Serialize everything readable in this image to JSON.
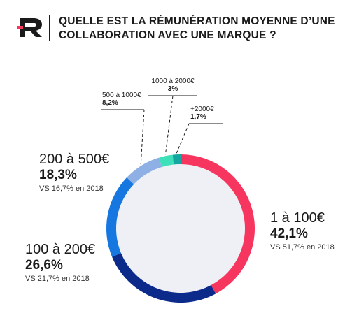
{
  "header": {
    "title_line1": "QUELLE EST LA RÉMUNÉRATION MOYENNE D’UNE",
    "title_line2": "COLLABORATION AVEC UNE MARQUE ?"
  },
  "chart_data": {
    "type": "pie",
    "style": "donut",
    "start": "top",
    "direction": "clockwise",
    "slices": [
      {
        "label": "1 à 100€",
        "value": 42.1,
        "value_text": "42,1%",
        "vs": "VS 51,7% en 2018",
        "color": "#f7365f"
      },
      {
        "label": "100 à 200€",
        "value": 26.6,
        "value_text": "26,6%",
        "vs": "VS 21,7% en 2018",
        "color": "#0c2a8a"
      },
      {
        "label": "200 à 500€",
        "value": 18.3,
        "value_text": "18,3%",
        "vs": "VS 16,7% en 2018",
        "color": "#1677e0"
      },
      {
        "label": "500 à 1000€",
        "value": 8.2,
        "value_text": "8,2%",
        "color": "#8fb0e4"
      },
      {
        "label": "1000 à 2000€",
        "value": 3,
        "value_text": "3%",
        "color": "#3de0b8"
      },
      {
        "label": "+2000€",
        "value": 1.7,
        "value_text": "1,7%",
        "color": "#12a7a0"
      }
    ],
    "inner_color": "#eef0f6"
  }
}
